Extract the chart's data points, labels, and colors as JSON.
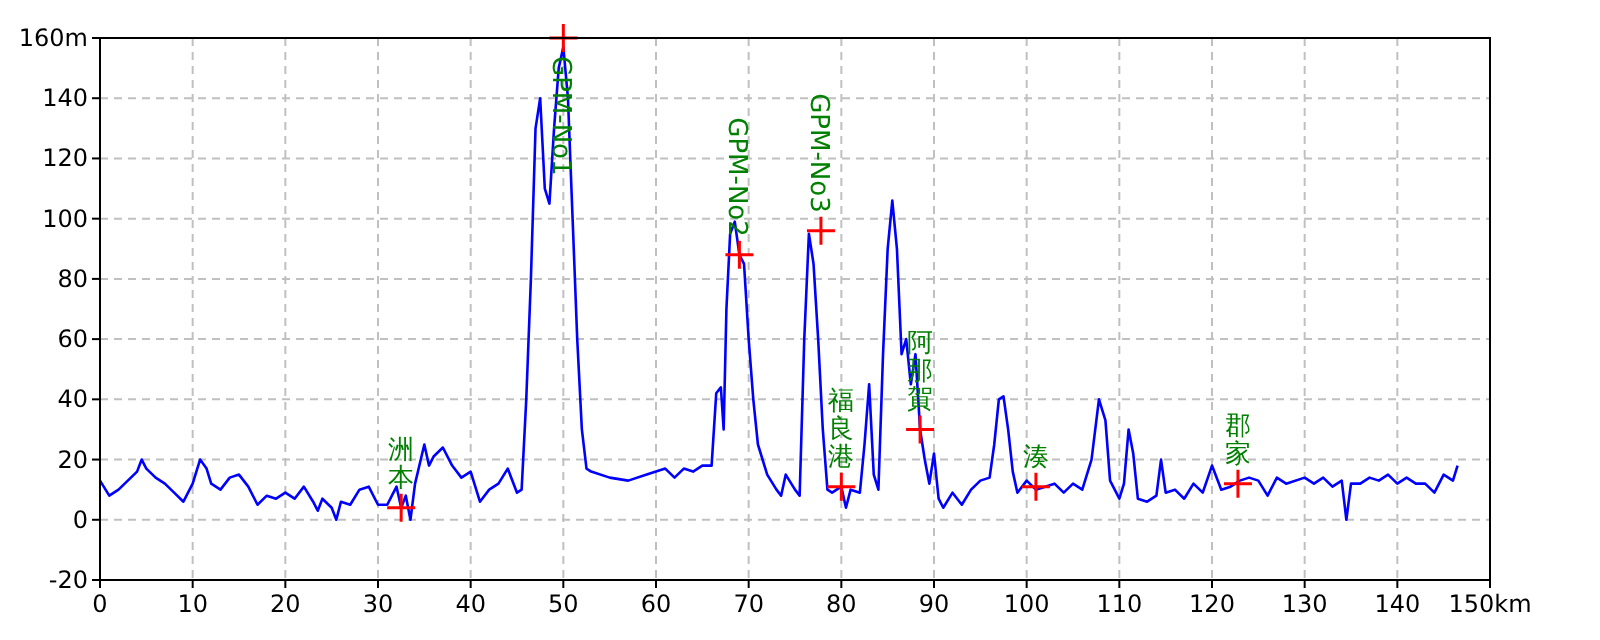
{
  "chart_data": {
    "type": "line",
    "xlim": [
      0,
      150
    ],
    "ylim": [
      -20,
      160
    ],
    "xticks": [
      0,
      10,
      20,
      30,
      40,
      50,
      60,
      70,
      80,
      90,
      100,
      110,
      120,
      130,
      140,
      {
        "value": 150,
        "label": "150km"
      }
    ],
    "yticks": [
      -20,
      0,
      20,
      40,
      60,
      80,
      100,
      120,
      140,
      {
        "value": 160,
        "label": "160m"
      }
    ],
    "grid": true,
    "series": [
      {
        "color": "#0000ff",
        "x": [
          0,
          1,
          2,
          3,
          4,
          4.5,
          5,
          6,
          7,
          8,
          9,
          10,
          10.8,
          11.5,
          12,
          13,
          14,
          15,
          16,
          17,
          18,
          19,
          20,
          21,
          22,
          23,
          23.5,
          24,
          25,
          25.5,
          26,
          27,
          28,
          29,
          30,
          31,
          31.5,
          32,
          32.5,
          33,
          33.5,
          34,
          35,
          35.5,
          36,
          37,
          38,
          39,
          40,
          41,
          42,
          43,
          44,
          45,
          45.5,
          46,
          46.5,
          47,
          47.5,
          48,
          48.5,
          49,
          49.5,
          50,
          50.5,
          51,
          51.5,
          52,
          52.5,
          53,
          55,
          57,
          59,
          61,
          62,
          63,
          64,
          65,
          66,
          66.5,
          67,
          67.3,
          67.6,
          68,
          68.5,
          69,
          69.5,
          70,
          70.5,
          71,
          72,
          73,
          73.5,
          74,
          75,
          75.5,
          76,
          76.5,
          77,
          77.5,
          78,
          78.5,
          79,
          80,
          80.5,
          81,
          82,
          82.5,
          83,
          83.5,
          84,
          84.5,
          85,
          85.5,
          86,
          86.5,
          87,
          87.5,
          88,
          88.5,
          89,
          89.5,
          90,
          90.5,
          91,
          92,
          93,
          94,
          95,
          96,
          96.5,
          97,
          97.5,
          98,
          98.5,
          99,
          100,
          101,
          102,
          103,
          104,
          105,
          106,
          107,
          107.8,
          108.5,
          109,
          110,
          110.5,
          111,
          111.5,
          112,
          113,
          114,
          114.5,
          115,
          116,
          117,
          118,
          119,
          120,
          121,
          122,
          123,
          124,
          125,
          126,
          127,
          128,
          130,
          131,
          132,
          133,
          134,
          134.5,
          135,
          136,
          137,
          138,
          139,
          140,
          141,
          142,
          143,
          144,
          145,
          146,
          146.5
        ],
        "values": [
          13,
          8,
          10,
          13,
          16,
          20,
          17,
          14,
          12,
          9,
          6,
          12,
          20,
          17,
          12,
          10,
          14,
          15,
          11,
          5,
          8,
          7,
          9,
          7,
          11,
          6,
          3,
          7,
          4,
          0,
          6,
          5,
          10,
          11,
          5,
          5,
          8,
          11,
          4,
          8,
          0,
          12,
          25,
          18,
          21,
          24,
          18,
          14,
          16,
          6,
          10,
          12,
          17,
          9,
          10,
          40,
          80,
          130,
          140,
          110,
          105,
          130,
          150,
          157,
          140,
          100,
          60,
          30,
          17,
          16,
          14,
          13,
          15,
          17,
          14,
          17,
          16,
          18,
          18,
          42,
          44,
          30,
          70,
          95,
          99,
          88,
          85,
          60,
          40,
          25,
          15,
          10,
          8,
          15,
          10,
          8,
          60,
          95,
          85,
          60,
          30,
          10,
          9,
          11,
          4,
          10,
          9,
          25,
          45,
          15,
          10,
          55,
          90,
          106,
          90,
          55,
          60,
          45,
          55,
          30,
          20,
          12,
          22,
          7,
          4,
          9,
          5,
          10,
          13,
          14,
          25,
          40,
          41,
          30,
          16,
          9,
          13,
          10,
          11,
          12,
          9,
          12,
          10,
          20,
          40,
          33,
          13,
          7,
          12,
          30,
          22,
          7,
          6,
          8,
          20,
          9,
          10,
          7,
          12,
          9,
          18,
          10,
          11,
          13,
          14,
          13,
          8,
          14,
          12,
          14,
          12,
          14,
          11,
          13,
          0,
          12,
          12,
          14,
          13,
          15,
          12,
          14,
          12,
          12,
          9,
          15,
          13,
          18
        ]
      },
      {
        "type": "scatter",
        "color": "#ff0000",
        "marker": "cross",
        "x": [
          32.5,
          50,
          69,
          77.8,
          80,
          88.5,
          101,
          122.8
        ],
        "values": [
          4,
          160,
          88,
          96,
          11,
          30,
          11,
          12
        ]
      }
    ],
    "annotations": [
      {
        "text": "洲本",
        "x": 32.5,
        "y": 4
      },
      {
        "text": "GPM-No1",
        "x": 50,
        "y": 160
      },
      {
        "text": "GPM-No2",
        "x": 69,
        "y": 88
      },
      {
        "text": "GPM-No3",
        "x": 77.8,
        "y": 96
      },
      {
        "text": "福良港",
        "x": 80,
        "y": 11
      },
      {
        "text": "阿那賀",
        "x": 88.5,
        "y": 30
      },
      {
        "text": "湊",
        "x": 101,
        "y": 11
      },
      {
        "text": "郡家",
        "x": 122.8,
        "y": 12
      }
    ]
  }
}
